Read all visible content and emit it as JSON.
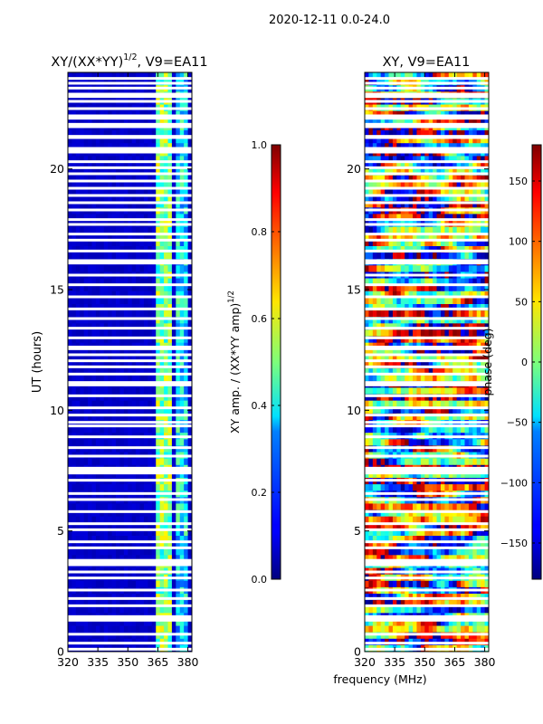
{
  "suptitle": "2020-12-11 0.0-24.0",
  "chart_data": [
    {
      "type": "heatmap",
      "title": "XY/(XX*YY)",
      "title_exp": "1/2",
      "title_suffix": ", V9=EA11",
      "xlabel": "",
      "ylabel": "UT (hours)",
      "xlim": [
        320,
        382
      ],
      "ylim": [
        0,
        24
      ],
      "xticks": [
        320,
        335,
        350,
        365,
        380
      ],
      "yticks": [
        0,
        5,
        10,
        15,
        20
      ],
      "colormap": "jet",
      "colorbar": {
        "label": "XY amp. / (XX*YY amp)",
        "label_exp": "1/2",
        "range": [
          0.0,
          1.0
        ],
        "ticks": [
          "0.0",
          "0.2",
          "0.4",
          "0.6",
          "0.8",
          "1.0"
        ],
        "tick_values": [
          0.0,
          0.2,
          0.4,
          0.6,
          0.8,
          1.0
        ]
      },
      "description_values": {
        "baseline": 0.05,
        "band_363_372": 0.5,
        "band_374_380": 0.35
      }
    },
    {
      "type": "heatmap",
      "title": "XY, V9=EA11",
      "xlabel": "frequency (MHz)",
      "ylabel": "",
      "xlim": [
        320,
        382
      ],
      "ylim": [
        0,
        24
      ],
      "xticks": [
        320,
        335,
        350,
        365,
        380
      ],
      "yticks": [
        0,
        5,
        10,
        15,
        20
      ],
      "colormap": "jet",
      "colorbar": {
        "label": "phase (deg)",
        "range": [
          -180,
          180
        ],
        "ticks": [
          "−150",
          "−100",
          "−50",
          "0",
          "50",
          "100",
          "150"
        ],
        "tick_values": [
          -150,
          -100,
          -50,
          0,
          50,
          100,
          150
        ]
      }
    }
  ],
  "flagged_hours": [
    0.1,
    0.35,
    0.72,
    1.3,
    1.38,
    1.45,
    1.9,
    2.2,
    2.55,
    3.05,
    3.3,
    3.6,
    3.7,
    3.78,
    4.3,
    4.55,
    5.05,
    5.3,
    5.8,
    6.3,
    6.55,
    7.1,
    7.4,
    7.5,
    7.6,
    8.1,
    8.45,
    8.9,
    9.35,
    9.5,
    9.8,
    10.1,
    10.6,
    11.05,
    11.15,
    11.5,
    11.8,
    12.05,
    12.3,
    12.55,
    12.62,
    13.0,
    13.4,
    13.8,
    14.2,
    14.7,
    15.2,
    15.6,
    16.1,
    16.15,
    16.2,
    16.6,
    17.05,
    17.3,
    17.7,
    17.9,
    18.3,
    18.6,
    18.9,
    19.2,
    19.5,
    19.8,
    20.05,
    20.3,
    20.7,
    20.75,
    20.8,
    20.85,
    21.3,
    21.35,
    21.75,
    21.85,
    22.1,
    22.2,
    22.5,
    22.8,
    23.0,
    23.1,
    23.35,
    23.55,
    23.75
  ]
}
